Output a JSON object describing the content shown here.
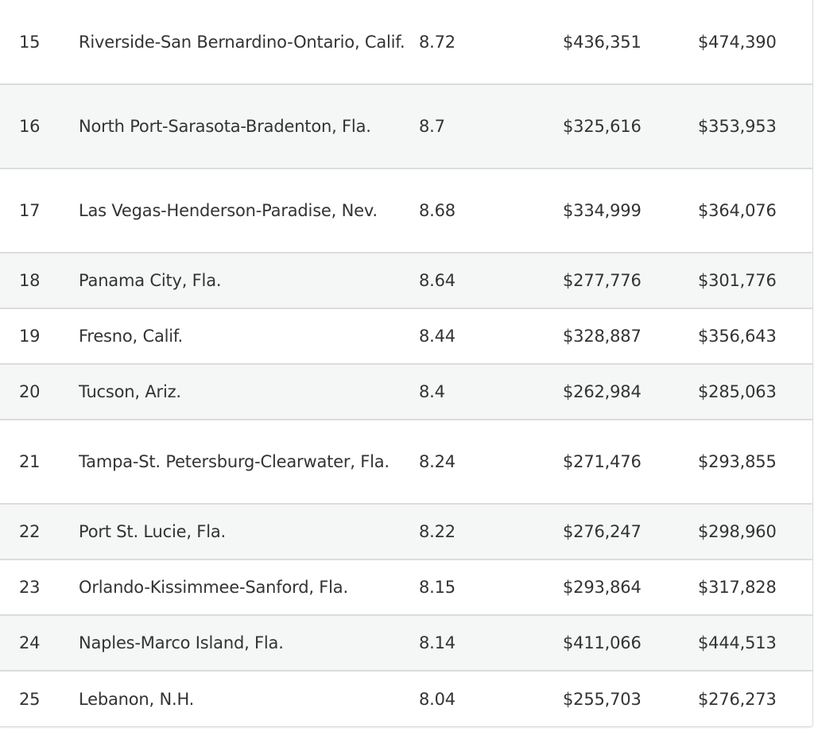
{
  "table": {
    "rows": [
      {
        "rank": "15",
        "metro": "Riverside-San Bernardino-Ontario, Calif.",
        "score": "8.72",
        "price_a": "$436,351",
        "price_b": "$474,390",
        "lines": 2
      },
      {
        "rank": "16",
        "metro": "North Port-Sarasota-Bradenton, Fla.",
        "score": "8.7",
        "price_a": "$325,616",
        "price_b": "$353,953",
        "lines": 2
      },
      {
        "rank": "17",
        "metro": "Las Vegas-Henderson-Paradise, Nev.",
        "score": "8.68",
        "price_a": "$334,999",
        "price_b": "$364,076",
        "lines": 2
      },
      {
        "rank": "18",
        "metro": "Panama City, Fla.",
        "score": "8.64",
        "price_a": "$277,776",
        "price_b": "$301,776",
        "lines": 1
      },
      {
        "rank": "19",
        "metro": "Fresno, Calif.",
        "score": "8.44",
        "price_a": "$328,887",
        "price_b": "$356,643",
        "lines": 1
      },
      {
        "rank": "20",
        "metro": "Tucson, Ariz.",
        "score": "8.4",
        "price_a": "$262,984",
        "price_b": "$285,063",
        "lines": 1
      },
      {
        "rank": "21",
        "metro": "Tampa-St. Petersburg-Clearwater, Fla.",
        "score": "8.24",
        "price_a": "$271,476",
        "price_b": "$293,855",
        "lines": 2
      },
      {
        "rank": "22",
        "metro": "Port St. Lucie, Fla.",
        "score": "8.22",
        "price_a": "$276,247",
        "price_b": "$298,960",
        "lines": 1
      },
      {
        "rank": "23",
        "metro": "Orlando-Kissimmee-Sanford, Fla.",
        "score": "8.15",
        "price_a": "$293,864",
        "price_b": "$317,828",
        "lines": 1
      },
      {
        "rank": "24",
        "metro": "Naples-Marco Island, Fla.",
        "score": "8.14",
        "price_a": "$411,066",
        "price_b": "$444,513",
        "lines": 1
      },
      {
        "rank": "25",
        "metro": "Lebanon, N.H.",
        "score": "8.04",
        "price_a": "$255,703",
        "price_b": "$276,273",
        "lines": 1
      }
    ]
  },
  "colors": {
    "row_alt_bg": "#f5f7f7",
    "row_border": "#dcdcdc",
    "text": "#333333"
  }
}
